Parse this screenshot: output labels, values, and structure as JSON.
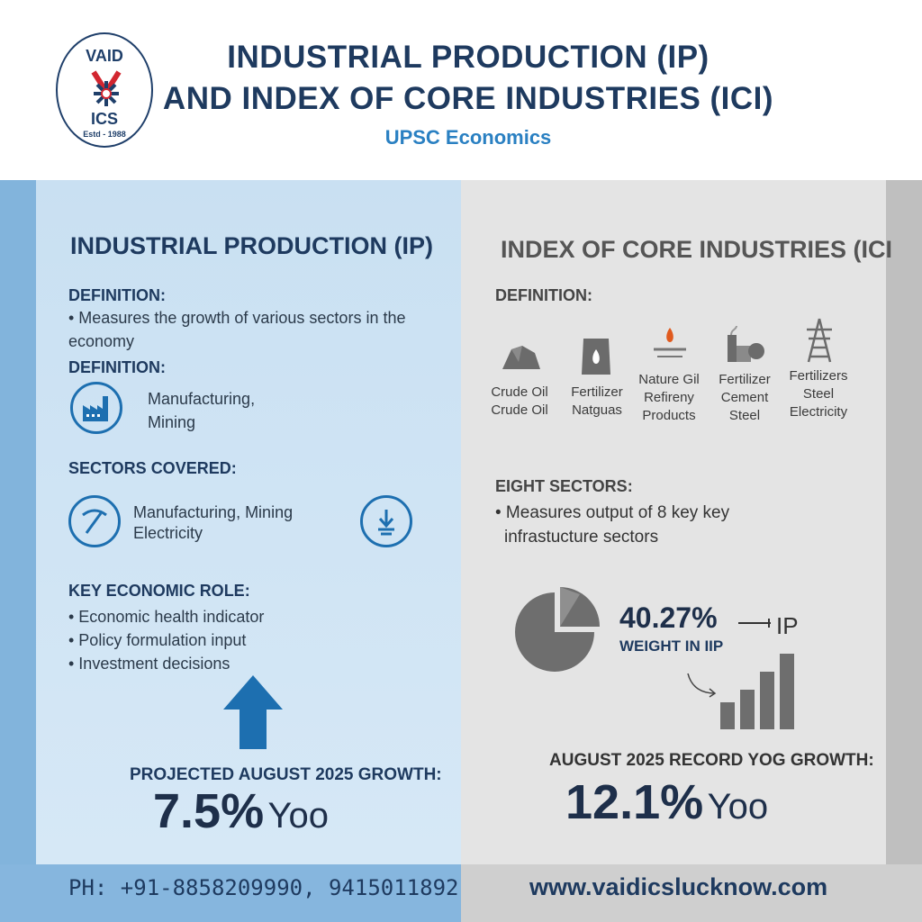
{
  "header": {
    "logo": {
      "line1": "VAID",
      "line2": "ICS",
      "line3": "Estd - 1988"
    },
    "title_line1": "INDUSTRIAL PRODUCTION (IP)",
    "title_line2": "AND INDEX OF CORE INDUSTRIES (ICI)",
    "subtitle": "UPSC Economics"
  },
  "left": {
    "heading": "INDUSTRIAL PRODUCTION (IP)",
    "definition_label": "DEFINITION:",
    "definition_text": "• Measures the growth of various sectors in the economy",
    "definition2_label": "DEFINITION:",
    "definition2_items": "Manufacturing,\nMining",
    "sectors_label": "SECTORS COVERED:",
    "sectors_text_line1": "Manufacturing, Mining",
    "sectors_text_line2": "Electricity",
    "role_label": "KEY ECONOMIC ROLE:",
    "roles": [
      "• Economic health indicator",
      "• Policy formulation input",
      "• Investment decisions"
    ],
    "growth_label": "PROJECTED AUGUST 2025 GROWTH:",
    "growth_value": "7.5%",
    "growth_unit": "Yoo"
  },
  "right": {
    "heading": "INDEX OF CORE INDUSTRIES (ICI",
    "definition_label": "DEFINITION:",
    "industries": [
      {
        "line1": "Crude Oil",
        "line2": "Crude Oil",
        "icon": "coal-icon"
      },
      {
        "line1": "Fertilizer",
        "line2": "Natguas",
        "icon": "gas-sack-icon"
      },
      {
        "line1": "Nature Gil",
        "line2": "Refireny",
        "line3": "Products",
        "icon": "flame-pipe-icon"
      },
      {
        "line1": "Fertilizer",
        "line2": "Cement",
        "line3": "Steel",
        "icon": "factory-mixer-icon"
      },
      {
        "line1": "Fertilizers",
        "line2": "Steel",
        "line3": "Electricity",
        "icon": "power-tower-icon"
      }
    ],
    "eight_label": "EIGHT SECTORS:",
    "eight_text_line1": "• Measures output of 8 key key",
    "eight_text_line2": "infrastucture sectors",
    "weight_value": "40.27%",
    "weight_label": "WEIGHT IN IIP",
    "ip_label": "IP",
    "growth_label": "AUGUST 2025 RECORD YOG GROWTH:",
    "growth_value": "12.1%",
    "growth_unit": "Yoo"
  },
  "footer": {
    "phone": "PH: +91-8858209990, 9415011892",
    "website": "www.vaidicslucknow.com"
  },
  "colors": {
    "navy": "#1e3a5f",
    "accent_blue": "#2a80c2",
    "icon_blue": "#1d6fb0",
    "left_panel": "#cfe3f4",
    "right_panel": "#e4e4e4",
    "logo_red": "#d22630"
  }
}
